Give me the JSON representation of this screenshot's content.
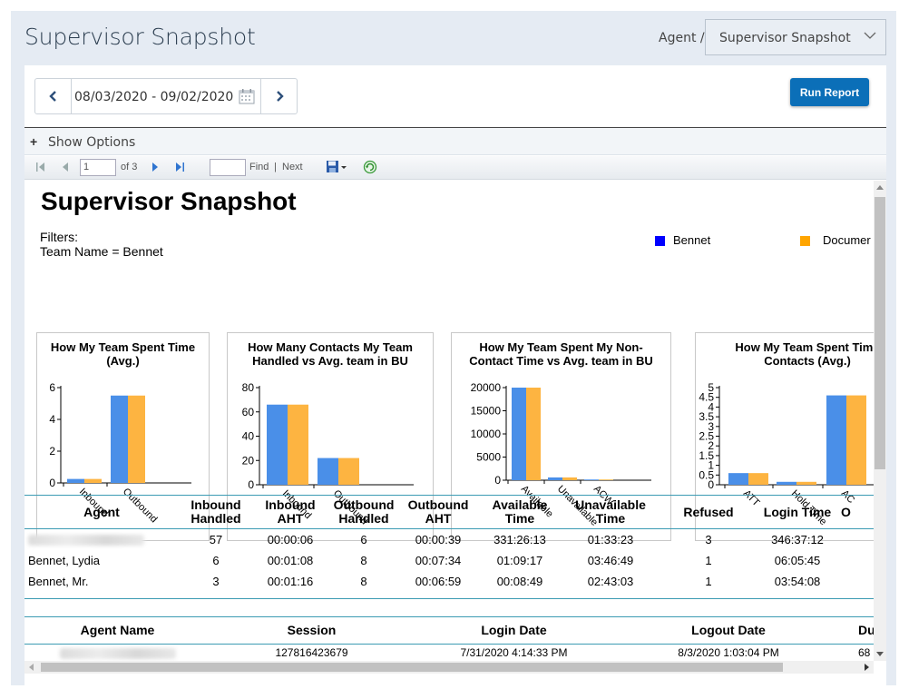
{
  "header": {
    "title": "Supervisor Snapshot",
    "breadcrumb_label": "Agent /",
    "report_select_value": "Supervisor Snapshot"
  },
  "controls": {
    "date_range": "08/03/2020 - 09/02/2020",
    "run_report_label": "Run Report",
    "show_options_label": "Show Options"
  },
  "toolbar": {
    "current_page": "1",
    "of_pages": "of 3",
    "find_label": "Find",
    "separator": "|",
    "next_label": "Next"
  },
  "report": {
    "title": "Supervisor Snapshot",
    "filters_label": "Filters:",
    "filters_value": "Team Name = Bennet",
    "legend": [
      {
        "label": "Bennet",
        "color": "#0000ff"
      },
      {
        "label": "Documer",
        "color": "#ffa500"
      }
    ]
  },
  "chart_data": [
    {
      "type": "bar",
      "title": "How My Team Spent Time (Avg.)",
      "categories": [
        "Inbound",
        "Outbound"
      ],
      "series": [
        {
          "name": "Bennet",
          "values": [
            0.25,
            5.5
          ]
        },
        {
          "name": "Documer",
          "values": [
            0.25,
            5.5
          ]
        }
      ],
      "yticks": [
        "0",
        "2",
        "4",
        "6"
      ],
      "ylim": [
        0,
        6
      ]
    },
    {
      "type": "bar",
      "title": "How Many Contacts My Team Handled  vs Avg. team in BU",
      "categories": [
        "Inbound",
        "Outbound"
      ],
      "series": [
        {
          "name": "Bennet",
          "values": [
            66,
            22
          ]
        },
        {
          "name": "Documer",
          "values": [
            66,
            22
          ]
        }
      ],
      "yticks": [
        "0",
        "20",
        "40",
        "60",
        "80"
      ],
      "ylim": [
        0,
        80
      ]
    },
    {
      "type": "bar",
      "title": "How My Team Spent My Non-Contact Time vs Avg. team in BU",
      "categories": [
        "Available",
        "Unavailable",
        "ACW"
      ],
      "series": [
        {
          "name": "Bennet",
          "values": [
            20000,
            600,
            150
          ]
        },
        {
          "name": "Documer",
          "values": [
            20000,
            600,
            150
          ]
        }
      ],
      "yticks": [
        "0",
        "5000",
        "10000",
        "15000",
        "20000"
      ],
      "ylim": [
        0,
        20000
      ]
    },
    {
      "type": "bar",
      "title": "How My Team Spent Time Contacts (Avg.)",
      "categories": [
        "ATT",
        "Hold Time",
        "AC"
      ],
      "series": [
        {
          "name": "Bennet",
          "values": [
            0.6,
            0.15,
            4.6
          ]
        },
        {
          "name": "Documer",
          "values": [
            0.6,
            0.15,
            4.6
          ]
        }
      ],
      "yticks": [
        "0",
        "0.5",
        "1",
        "1.5",
        "2",
        "2.5",
        "3",
        "3.5",
        "4",
        "4.5",
        "5"
      ],
      "ylim": [
        0,
        5
      ]
    }
  ],
  "agent_table": {
    "headers": [
      "Agent",
      "Inbound Handled",
      "Inbound AHT",
      "Outbound Handled",
      "Outbound AHT",
      "Available Time",
      "Unavailable Time",
      "Refused",
      "Login Time",
      "O"
    ],
    "rows": [
      [
        "",
        "57",
        "00:00:06",
        "6",
        "00:00:39",
        "331:26:13",
        "01:33:23",
        "3",
        "346:37:12"
      ],
      [
        "Bennet, Lydia",
        "6",
        "00:01:08",
        "8",
        "00:07:34",
        "01:09:17",
        "03:46:49",
        "1",
        "06:05:45"
      ],
      [
        "Bennet, Mr.",
        "3",
        "00:01:16",
        "8",
        "00:06:59",
        "00:08:49",
        "02:43:03",
        "1",
        "03:54:08"
      ]
    ]
  },
  "session_table": {
    "headers": [
      "Agent Name",
      "Session",
      "Login Date",
      "Logout Date",
      "Du"
    ],
    "rows": [
      [
        "",
        "127816423679",
        "7/31/2020 4:14:33 PM",
        "8/3/2020 1:03:04 PM",
        "68"
      ]
    ]
  },
  "colors": {
    "bar_primary": "#4a8fe8",
    "bar_secondary": "#fdb441",
    "accent": "#0b6fb8",
    "table_rule": "#3c9bb3"
  }
}
